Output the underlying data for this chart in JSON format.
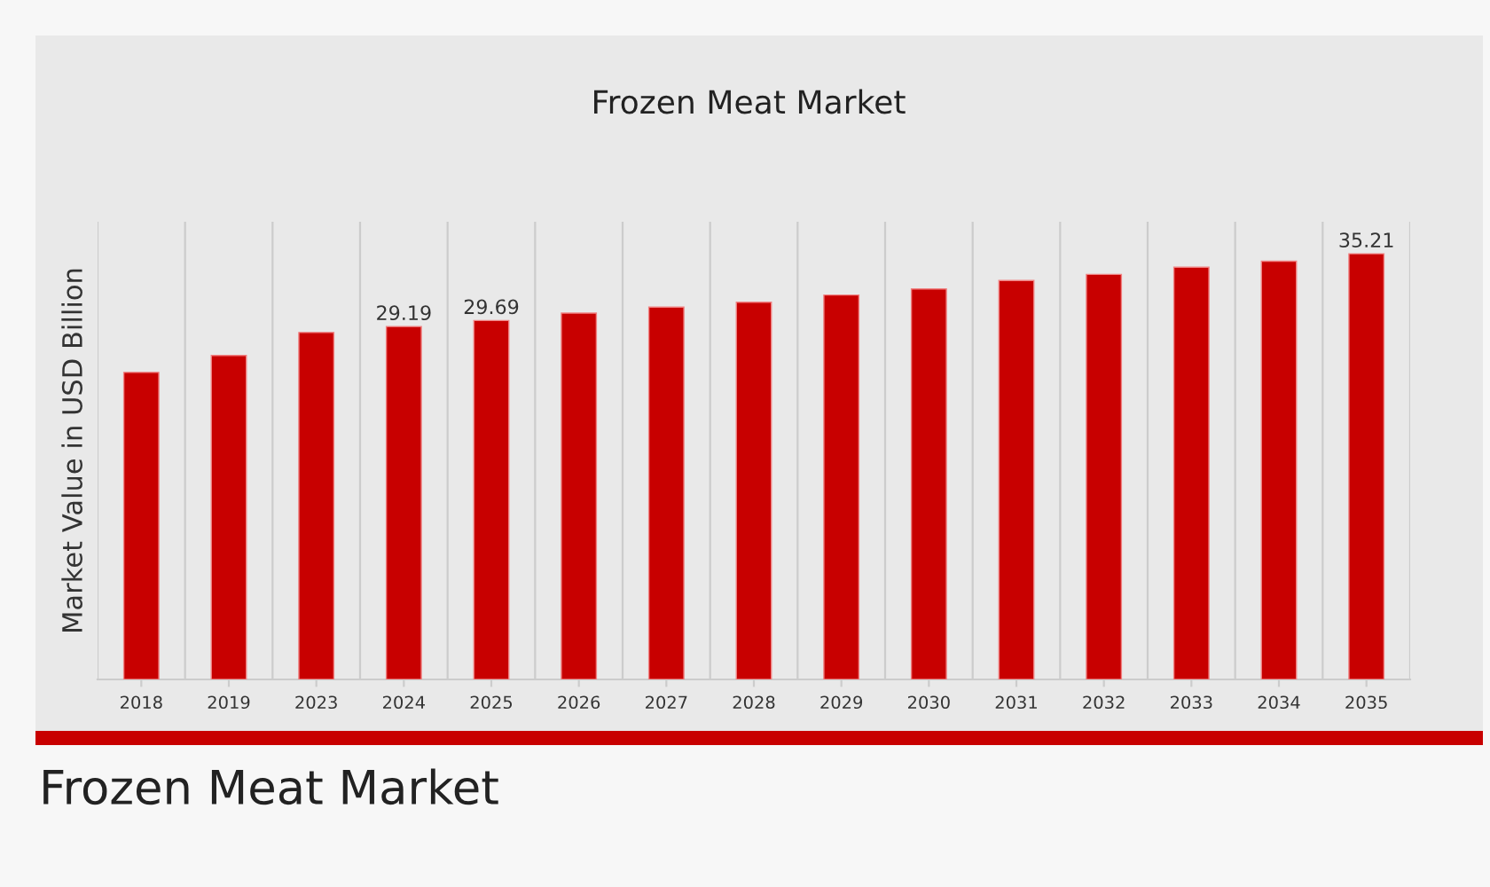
{
  "chart_data": {
    "type": "bar",
    "title": "Frozen Meat Market",
    "ylabel": "Market Value in USD Billion",
    "categories": [
      "2018",
      "2019",
      "2023",
      "2024",
      "2025",
      "2026",
      "2027",
      "2028",
      "2029",
      "2030",
      "2031",
      "2032",
      "2033",
      "2034",
      "2035"
    ],
    "values": [
      25.4,
      26.8,
      28.7,
      29.19,
      29.69,
      30.3,
      30.8,
      31.2,
      31.8,
      32.3,
      33.0,
      33.5,
      34.1,
      34.6,
      35.21
    ],
    "value_labels": [
      null,
      null,
      null,
      "29.19",
      "29.69",
      null,
      null,
      null,
      null,
      null,
      null,
      null,
      null,
      null,
      "35.21"
    ],
    "color": "#c80000",
    "grid": "x",
    "tick_labels": "x",
    "annotations": [
      "Frozen Meat Market"
    ]
  }
}
